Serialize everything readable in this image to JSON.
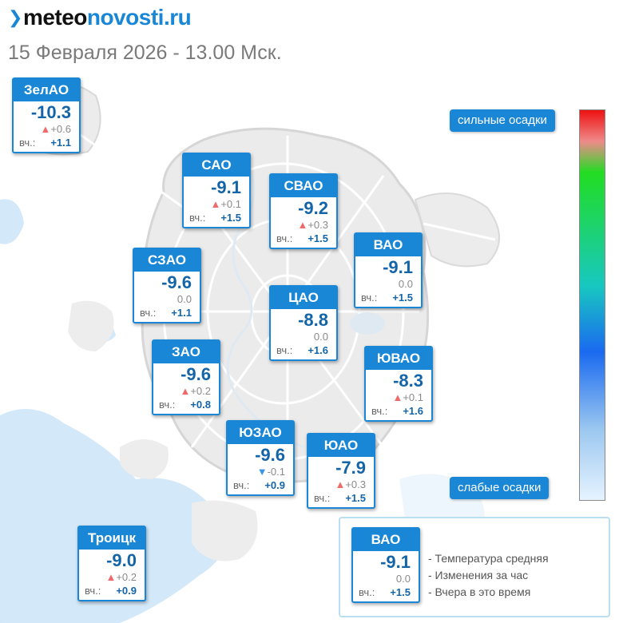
{
  "brand": {
    "prefix": "meteo",
    "suffix": "novosti.ru"
  },
  "subtitle": "15 Февраля 2026 - 13.00 Мск.",
  "districts": [
    {
      "name": "ЗелАО",
      "temp": "-10.3",
      "trend": "up",
      "change": "+0.6",
      "yesterday_label": "вч.:",
      "yesterday": "+1.1"
    },
    {
      "name": "САО",
      "temp": "-9.1",
      "trend": "up",
      "change": "+0.1",
      "yesterday_label": "вч.:",
      "yesterday": "+1.5"
    },
    {
      "name": "СВАО",
      "temp": "-9.2",
      "trend": "up",
      "change": "+0.3",
      "yesterday_label": "вч.:",
      "yesterday": "+1.5"
    },
    {
      "name": "ВАО",
      "temp": "-9.1",
      "trend": "none",
      "change": "0.0",
      "yesterday_label": "вч.:",
      "yesterday": "+1.5"
    },
    {
      "name": "СЗАО",
      "temp": "-9.6",
      "trend": "none",
      "change": "0.0",
      "yesterday_label": "вч.:",
      "yesterday": "+1.1"
    },
    {
      "name": "ЦАО",
      "temp": "-8.8",
      "trend": "none",
      "change": "0.0",
      "yesterday_label": "вч.:",
      "yesterday": "+1.6"
    },
    {
      "name": "ЗАО",
      "temp": "-9.6",
      "trend": "up",
      "change": "+0.2",
      "yesterday_label": "вч.:",
      "yesterday": "+0.8"
    },
    {
      "name": "ЮВАО",
      "temp": "-8.3",
      "trend": "up",
      "change": "+0.1",
      "yesterday_label": "вч.:",
      "yesterday": "+1.6"
    },
    {
      "name": "ЮЗАО",
      "temp": "-9.6",
      "trend": "down",
      "change": "-0.1",
      "yesterday_label": "вч.:",
      "yesterday": "+0.9"
    },
    {
      "name": "ЮАО",
      "temp": "-7.9",
      "trend": "up",
      "change": "+0.3",
      "yesterday_label": "вч.:",
      "yesterday": "+1.5"
    },
    {
      "name": "Троицк",
      "temp": "-9.0",
      "trend": "up",
      "change": "+0.2",
      "yesterday_label": "вч.:",
      "yesterday": "+0.9"
    }
  ],
  "scale": {
    "top_label": "сильные осадки",
    "bottom_label": "слабые осадки",
    "colors": [
      "#ee1111",
      "#22dd22",
      "#1a6af0",
      "#e6f3ff"
    ]
  },
  "legend": {
    "example": {
      "name": "ВАО",
      "temp": "-9.1",
      "trend": "none",
      "change": "0.0",
      "yesterday_label": "вч.:",
      "yesterday": "+1.5"
    },
    "lines": [
      "- Температура средняя",
      "- Изменения за час",
      "- Вчера в это время"
    ]
  },
  "colors": {
    "accent": "#1a86d6",
    "temp_text": "#1465a8",
    "trend_up": "#ef6b6b",
    "trend_down": "#3b95e6"
  }
}
